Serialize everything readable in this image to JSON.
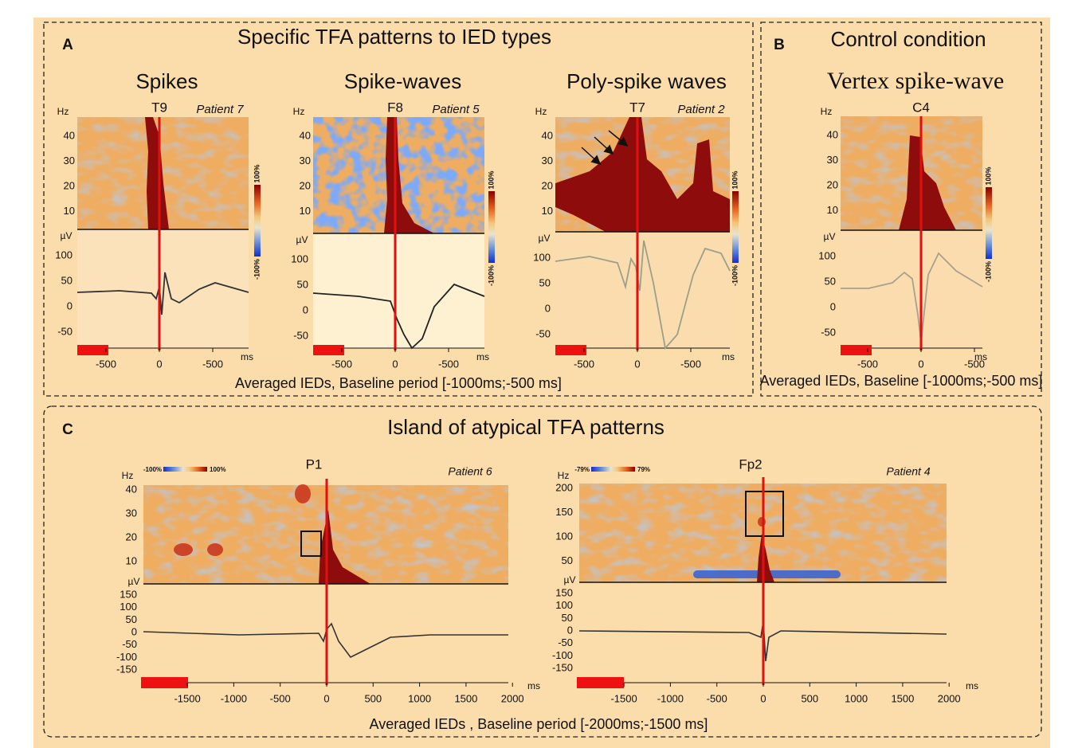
{
  "panels": [
    {
      "label": "A",
      "title": "Specific TFA patterns to IED types",
      "caption": "Averaged IEDs, Baseline period [-1000ms;-500 ms]",
      "axes": {
        "hz_unit": "Hz",
        "uv_unit": "µV",
        "time_unit": "ms",
        "hz_ticks": [
          "40",
          "30",
          "20",
          "10"
        ],
        "uv_ticks": [
          "100",
          "50",
          "0",
          "-50"
        ],
        "time_ticks": [
          "-500",
          "0",
          "-500"
        ],
        "colorbar": [
          "100%",
          "-100%"
        ]
      },
      "plots": [
        {
          "title": "Spikes",
          "channel": "T9",
          "patient": "Patient 7"
        },
        {
          "title": "Spike-waves",
          "channel": "F8",
          "patient": "Patient 5"
        },
        {
          "title": "Poly-spike waves",
          "channel": "T7",
          "patient": "Patient 2"
        }
      ]
    },
    {
      "label": "B",
      "title": "Control condition",
      "caption": "Averaged IEDs, Baseline [-1000ms;-500 ms]",
      "axes": {
        "hz_unit": "Hz",
        "uv_unit": "µV",
        "time_unit": "ms",
        "hz_ticks": [
          "40",
          "30",
          "20",
          "10"
        ],
        "uv_ticks": [
          "100",
          "50",
          "0",
          "-50"
        ],
        "time_ticks": [
          "-500",
          "0",
          "-500"
        ],
        "colorbar": [
          "100%",
          "-100%"
        ]
      },
      "plots": [
        {
          "title": "Vertex spike-wave",
          "channel": "C4"
        }
      ]
    },
    {
      "label": "C",
      "title": "Island of atypical TFA patterns",
      "caption": "Averaged IEDs , Baseline period [-2000ms;-1500 ms]",
      "axes": {
        "hz_unit": "Hz",
        "uv_unit": "µV",
        "time_unit": "ms",
        "uv_ticks": [
          "150",
          "100",
          "50",
          "0",
          "-50",
          "-100",
          "-150"
        ],
        "time_ticks": [
          "-1500",
          "-1000",
          "-500",
          "0",
          "500",
          "1000",
          "1500",
          "2000"
        ]
      },
      "plots": [
        {
          "channel": "P1",
          "patient": "Patient 6",
          "hz_ticks": [
            "40",
            "30",
            "20",
            "10"
          ],
          "colorbar": [
            "-100%",
            "100%"
          ]
        },
        {
          "channel": "Fp2",
          "patient": "Patient 4",
          "hz_ticks": [
            "200",
            "150",
            "100",
            "50"
          ],
          "colorbar": [
            "-79%",
            "79%"
          ]
        }
      ]
    }
  ]
}
